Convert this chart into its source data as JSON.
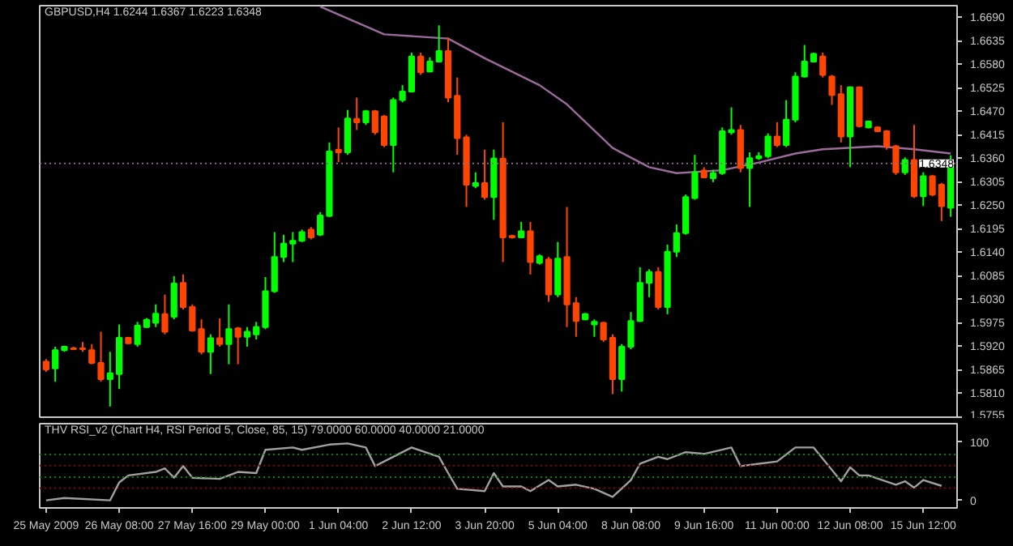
{
  "chart_data": [
    {
      "type": "candlestick",
      "title": "GBPUSD,H4  1.6244 1.6367 1.6223 1.6348",
      "tick_labels": "y",
      "categories": [
        null,
        null,
        null,
        null,
        null,
        null,
        null,
        null,
        null,
        null,
        null,
        null,
        null,
        null,
        null,
        null,
        null,
        null,
        null,
        null,
        null,
        null,
        null,
        null,
        null,
        null,
        null,
        null,
        null,
        null,
        null,
        null,
        null,
        null,
        null,
        null,
        null,
        null,
        null,
        null,
        null,
        null,
        null,
        null,
        null,
        null,
        null,
        null,
        null,
        null,
        null,
        null,
        null,
        null,
        null,
        null,
        null,
        null,
        null,
        null,
        null,
        null,
        null,
        null,
        null,
        null,
        null,
        null,
        null,
        null,
        null,
        null,
        null,
        null,
        null,
        null,
        null,
        null,
        null,
        null,
        null,
        null,
        null,
        null,
        null,
        null,
        null,
        null,
        null,
        null,
        null,
        null,
        null,
        null,
        null,
        null,
        null,
        null,
        null,
        null
      ],
      "ohlc": [
        [
          1.5884,
          1.589,
          1.586,
          1.5866
        ],
        [
          1.5868,
          1.5919,
          1.5837,
          1.5911
        ],
        [
          1.5911,
          1.5921,
          1.5907,
          1.5919
        ],
        [
          1.5915,
          1.5919,
          1.5911,
          1.5913
        ],
        [
          1.5915,
          1.593,
          1.5907,
          1.5913
        ],
        [
          1.5911,
          1.5925,
          1.5878,
          1.5881
        ],
        [
          1.5881,
          1.5954,
          1.5837,
          1.5843
        ],
        [
          1.5843,
          1.5907,
          1.5779,
          1.5857
        ],
        [
          1.5855,
          1.5971,
          1.582,
          1.594
        ],
        [
          1.594,
          1.5942,
          1.5925,
          1.5927
        ],
        [
          1.5925,
          1.5977,
          1.5919,
          1.5968
        ],
        [
          1.5965,
          1.5986,
          1.5963,
          1.5982
        ],
        [
          1.5975,
          1.6018,
          1.5965,
          1.5996
        ],
        [
          1.5995,
          1.6041,
          1.5948,
          1.5954
        ],
        [
          1.5989,
          1.6084,
          1.5983,
          1.6067
        ],
        [
          1.6068,
          1.6088,
          1.6006,
          1.6012
        ],
        [
          1.6012,
          1.6018,
          1.5954,
          1.5957
        ],
        [
          1.596,
          1.5983,
          1.5901,
          1.5907
        ],
        [
          1.5907,
          1.5948,
          1.5855,
          1.5939
        ],
        [
          1.5939,
          1.5985,
          1.5919,
          1.5925
        ],
        [
          1.5925,
          1.6018,
          1.5878,
          1.596
        ],
        [
          1.5962,
          1.5965,
          1.5878,
          1.5942
        ],
        [
          1.5942,
          1.5965,
          1.5919,
          1.5954
        ],
        [
          1.5948,
          1.5977,
          1.5936,
          1.5965
        ],
        [
          1.5965,
          1.6082,
          1.596,
          1.6049
        ],
        [
          1.6049,
          1.6187,
          1.6045,
          1.6129
        ],
        [
          1.6129,
          1.6181,
          1.6117,
          1.616
        ],
        [
          1.616,
          1.6187,
          1.6117,
          1.6167
        ],
        [
          1.6167,
          1.6193,
          1.6164,
          1.6187
        ],
        [
          1.6193,
          1.6199,
          1.617,
          1.6175
        ],
        [
          1.6181,
          1.6234,
          1.6178,
          1.6226
        ],
        [
          1.6225,
          1.6397,
          1.6222,
          1.6376
        ],
        [
          1.638,
          1.6432,
          1.6351,
          1.6374
        ],
        [
          1.6374,
          1.6473,
          1.6368,
          1.6453
        ],
        [
          1.6452,
          1.6502,
          1.6426,
          1.6444
        ],
        [
          1.6444,
          1.6473,
          1.6438,
          1.647
        ],
        [
          1.647,
          1.6473,
          1.6415,
          1.6421
        ],
        [
          1.6458,
          1.6461,
          1.6386,
          1.6391
        ],
        [
          1.6391,
          1.6502,
          1.6327,
          1.6496
        ],
        [
          1.6496,
          1.6531,
          1.6491,
          1.6516
        ],
        [
          1.6516,
          1.6607,
          1.6514,
          1.6598
        ],
        [
          1.6598,
          1.6607,
          1.6555,
          1.6561
        ],
        [
          1.6563,
          1.6596,
          1.6561,
          1.6586
        ],
        [
          1.6586,
          1.6671,
          1.6584,
          1.6611
        ],
        [
          1.6611,
          1.6642,
          1.6491,
          1.6502
        ],
        [
          1.6506,
          1.6549,
          1.6368,
          1.6407
        ],
        [
          1.6409,
          1.6415,
          1.6246,
          1.6298
        ],
        [
          1.6295,
          1.6327,
          1.629,
          1.6302
        ],
        [
          1.6302,
          1.638,
          1.6263,
          1.6269
        ],
        [
          1.6269,
          1.638,
          1.6216,
          1.6359
        ],
        [
          1.6359,
          1.6444,
          1.6117,
          1.6175
        ],
        [
          1.6178,
          1.6181,
          1.6172,
          1.6175
        ],
        [
          1.6175,
          1.6211,
          1.6175,
          1.6189
        ],
        [
          1.6189,
          1.6211,
          1.6088,
          1.6117
        ],
        [
          1.6115,
          1.6135,
          1.6111,
          1.6131
        ],
        [
          1.6123,
          1.6129,
          1.6024,
          1.6041
        ],
        [
          1.6041,
          1.6164,
          1.6035,
          1.6125
        ],
        [
          1.6129,
          1.6246,
          1.5965,
          1.6018
        ],
        [
          1.6021,
          1.6035,
          1.5942,
          1.5979
        ],
        [
          1.5983,
          1.5998,
          1.5981,
          1.5995
        ],
        [
          1.5971,
          1.5983,
          1.5942,
          1.5977
        ],
        [
          1.5975,
          1.5977,
          1.593,
          1.5936
        ],
        [
          1.594,
          1.5948,
          1.5808,
          1.5843
        ],
        [
          1.5843,
          1.5925,
          1.5814,
          1.5919
        ],
        [
          1.5919,
          1.6,
          1.5913,
          1.5979
        ],
        [
          1.5979,
          1.6105,
          1.5977,
          1.6068
        ],
        [
          1.6068,
          1.61,
          1.6035,
          1.6094
        ],
        [
          1.6094,
          1.6105,
          1.6006,
          1.6012
        ],
        [
          1.6012,
          1.6158,
          1.5995,
          1.6141
        ],
        [
          1.6141,
          1.6205,
          1.6129,
          1.6185
        ],
        [
          1.6185,
          1.6275,
          1.6181,
          1.6269
        ],
        [
          1.6267,
          1.6368,
          1.6263,
          1.6327
        ],
        [
          1.6331,
          1.6339,
          1.6313,
          1.6315
        ],
        [
          1.6313,
          1.6333,
          1.6304,
          1.6325
        ],
        [
          1.6325,
          1.6432,
          1.6321,
          1.6423
        ],
        [
          1.6421,
          1.6479,
          1.6415,
          1.6426
        ],
        [
          1.6426,
          1.6438,
          1.6327,
          1.6337
        ],
        [
          1.6337,
          1.6374,
          1.6246,
          1.636
        ],
        [
          1.636,
          1.6374,
          1.6356,
          1.6365
        ],
        [
          1.6365,
          1.6418,
          1.636,
          1.6411
        ],
        [
          1.6411,
          1.6444,
          1.6386,
          1.6391
        ],
        [
          1.6391,
          1.6496,
          1.6386,
          1.645
        ],
        [
          1.645,
          1.6561,
          1.6444,
          1.6551
        ],
        [
          1.6551,
          1.6625,
          1.6549,
          1.6586
        ],
        [
          1.6586,
          1.6607,
          1.6584,
          1.6604
        ],
        [
          1.6598,
          1.6607,
          1.6549,
          1.6555
        ],
        [
          1.6551,
          1.6555,
          1.6485,
          1.6508
        ],
        [
          1.651,
          1.6531,
          1.6397,
          1.6411
        ],
        [
          1.6411,
          1.6528,
          1.6339,
          1.6526
        ],
        [
          1.6526,
          1.6528,
          1.6432,
          1.6435
        ],
        [
          1.6432,
          1.6448,
          1.643,
          1.6446
        ],
        [
          1.6432,
          1.6435,
          1.6421,
          1.6423
        ],
        [
          1.6423,
          1.6426,
          1.638,
          1.6388
        ],
        [
          1.6388,
          1.6391,
          1.6321,
          1.6327
        ],
        [
          1.6327,
          1.6362,
          1.6321,
          1.6356
        ],
        [
          1.6356,
          1.6438,
          1.6267,
          1.6271
        ],
        [
          1.6271,
          1.6327,
          1.6248,
          1.6318
        ],
        [
          1.6318,
          1.6321,
          1.6271,
          1.6275
        ],
        [
          1.6298,
          1.6302,
          1.6213,
          1.6248
        ],
        [
          1.6244,
          1.6367,
          1.6223,
          1.6348
        ]
      ],
      "colors": [
        "#ff4500",
        "#00ff00",
        "#00ff00",
        "#ff4500",
        "#ff4500",
        "#ff4500",
        "#ff4500",
        "#00ff00",
        "#00ff00",
        "#ff4500",
        "#00ff00",
        "#00ff00",
        "#00ff00",
        "#ff4500",
        "#00ff00",
        "#ff4500",
        "#ff4500",
        "#ff4500",
        "#00ff00",
        "#ff4500",
        "#00ff00",
        "#ff4500",
        "#00ff00",
        "#00ff00",
        "#00ff00",
        "#00ff00",
        "#00ff00",
        "#00ff00",
        "#00ff00",
        "#ff4500",
        "#00ff00",
        "#00ff00",
        "#ff4500",
        "#00ff00",
        "#ff4500",
        "#00ff00",
        "#ff4500",
        "#ff4500",
        "#00ff00",
        "#00ff00",
        "#00ff00",
        "#ff4500",
        "#00ff00",
        "#00ff00",
        "#ff4500",
        "#ff4500",
        "#ff4500",
        "#00ff00",
        "#ff4500",
        "#00ff00",
        "#ff4500",
        "#ff4500",
        "#00ff00",
        "#ff4500",
        "#00ff00",
        "#ff4500",
        "#00ff00",
        "#ff4500",
        "#ff4500",
        "#00ff00",
        "#00ff00",
        "#ff4500",
        "#ff4500",
        "#00ff00",
        "#00ff00",
        "#00ff00",
        "#00ff00",
        "#ff4500",
        "#00ff00",
        "#00ff00",
        "#00ff00",
        "#00ff00",
        "#ff4500",
        "#00ff00",
        "#00ff00",
        "#00ff00",
        "#ff4500",
        "#00ff00",
        "#00ff00",
        "#00ff00",
        "#ff4500",
        "#00ff00",
        "#00ff00",
        "#00ff00",
        "#00ff00",
        "#ff4500",
        "#ff4500",
        "#ff4500",
        "#00ff00",
        "#ff4500",
        "#00ff00",
        "#ff4500",
        "#ff4500",
        "#ff4500",
        "#00ff00",
        "#ff4500",
        "#00ff00",
        "#ff4500",
        "#ff4500",
        "#00ff00"
      ],
      "series": [
        {
          "type": "line",
          "color": "#9b6b9b",
          "values": [
            null,
            null,
            null,
            null,
            null,
            null,
            null,
            null,
            null,
            null,
            null,
            null,
            null,
            null,
            null,
            null,
            null,
            null,
            null,
            null,
            null,
            null,
            null,
            null,
            null,
            null,
            null,
            null,
            null,
            null,
            1.6715,
            null,
            null,
            null,
            null,
            null,
            null,
            1.665,
            null,
            null,
            null,
            null,
            null,
            null,
            1.664,
            null,
            null,
            null,
            1.6594,
            null,
            null,
            null,
            null,
            null,
            1.6531,
            null,
            null,
            1.6486,
            null,
            null,
            null,
            null,
            1.6384,
            null,
            null,
            null,
            1.6339,
            null,
            null,
            1.6325,
            null,
            null,
            null,
            null,
            1.6332,
            null,
            null,
            null,
            1.635,
            null,
            null,
            null,
            1.6371,
            null,
            null,
            1.6381,
            null,
            null,
            null,
            null,
            null,
            1.6388,
            null,
            null,
            null,
            1.6381,
            null,
            null,
            null,
            1.6371
          ]
        }
      ],
      "ylim": [
        1.5754,
        1.6717
      ],
      "yticks": [
        {
          "value": 1.669,
          "label": "1.6690"
        },
        {
          "value": 1.6635,
          "label": "1.6635"
        },
        {
          "value": 1.658,
          "label": "1.6580"
        },
        {
          "value": 1.6525,
          "label": "1.6525"
        },
        {
          "value": 1.647,
          "label": "1.6470"
        },
        {
          "value": 1.6415,
          "label": "1.6415"
        },
        {
          "value": 1.636,
          "label": "1.6360"
        },
        {
          "value": 1.6305,
          "label": "1.6305"
        },
        {
          "value": 1.625,
          "label": "1.6250"
        },
        {
          "value": 1.6195,
          "label": "1.6195"
        },
        {
          "value": 1.614,
          "label": "1.6140"
        },
        {
          "value": 1.6085,
          "label": "1.6085"
        },
        {
          "value": 1.603,
          "label": "1.6030"
        },
        {
          "value": 1.5975,
          "label": "1.5975"
        },
        {
          "value": 1.592,
          "label": "1.5920"
        },
        {
          "value": 1.5865,
          "label": "1.5865"
        },
        {
          "value": 1.581,
          "label": "1.5810"
        },
        {
          "value": 1.5755,
          "label": "1.5755"
        }
      ],
      "ref_lines": [
        {
          "axis": "y",
          "value": 1.6348,
          "label": "1.6348",
          "color": "#8a6a8a",
          "line_style": "dotted"
        }
      ]
    },
    {
      "type": "line",
      "title": "THV RSI_v2  (Chart H4, RSI Period 5, Close, 85, 15)  79.0000 60.0000 40.0000 21.0000",
      "color": "#a0a0a0",
      "categories": [
        "25 May 2009",
        null,
        null,
        null,
        null,
        null,
        null,
        null,
        "26 May 08:00",
        null,
        null,
        null,
        null,
        null,
        null,
        null,
        "27 May 16:00",
        null,
        null,
        null,
        null,
        null,
        null,
        null,
        "29 May 00:00",
        null,
        null,
        null,
        null,
        null,
        null,
        null,
        "1 Jun 04:00",
        null,
        null,
        null,
        null,
        null,
        null,
        null,
        "2 Jun 12:00",
        null,
        null,
        null,
        null,
        null,
        null,
        null,
        "3 Jun 20:00",
        null,
        null,
        null,
        null,
        null,
        null,
        null,
        "5 Jun 04:00",
        null,
        null,
        null,
        null,
        null,
        null,
        null,
        "8 Jun 08:00",
        null,
        null,
        null,
        null,
        null,
        null,
        null,
        "9 Jun 16:00",
        null,
        null,
        null,
        null,
        null,
        null,
        null,
        "11 Jun 00:00",
        null,
        null,
        null,
        null,
        null,
        null,
        null,
        "12 Jun 08:00",
        null,
        null,
        null,
        null,
        null,
        null,
        null,
        "15 Jun 12:00",
        null,
        null,
        null
      ],
      "values": [
        0,
        null,
        4,
        null,
        null,
        null,
        null,
        0,
        31,
        43,
        null,
        null,
        49,
        55,
        39,
        59,
        39,
        null,
        null,
        37,
        null,
        49,
        null,
        47,
        87,
        null,
        null,
        91,
        87,
        null,
        null,
        96,
        null,
        98,
        null,
        91,
        59,
        null,
        75,
        null,
        91,
        null,
        null,
        75,
        47,
        20,
        null,
        null,
        16,
        47,
        24,
        null,
        24,
        16,
        null,
        35,
        24,
        null,
        27,
        null,
        20,
        null,
        6,
        null,
        35,
        63,
        null,
        75,
        71,
        null,
        83,
        null,
        80,
        null,
        null,
        91,
        59,
        null,
        63,
        null,
        67,
        null,
        91,
        null,
        91,
        null,
        null,
        33,
        57,
        43,
        43,
        null,
        null,
        27,
        33,
        22,
        35,
        null,
        25,
        null
      ],
      "ylim": [
        -13,
        132
      ],
      "yticks": [
        0,
        100
      ],
      "ref_lines": [
        {
          "axis": "y",
          "value": 79,
          "color": "#008000",
          "line_style": "dotted"
        },
        {
          "axis": "y",
          "value": 60,
          "color": "#8b0000",
          "line_style": "dotted"
        },
        {
          "axis": "y",
          "value": 40,
          "color": "#008000",
          "line_style": "dotted"
        },
        {
          "axis": "y",
          "value": 21,
          "color": "#8b0000",
          "line_style": "dotted"
        }
      ]
    }
  ]
}
